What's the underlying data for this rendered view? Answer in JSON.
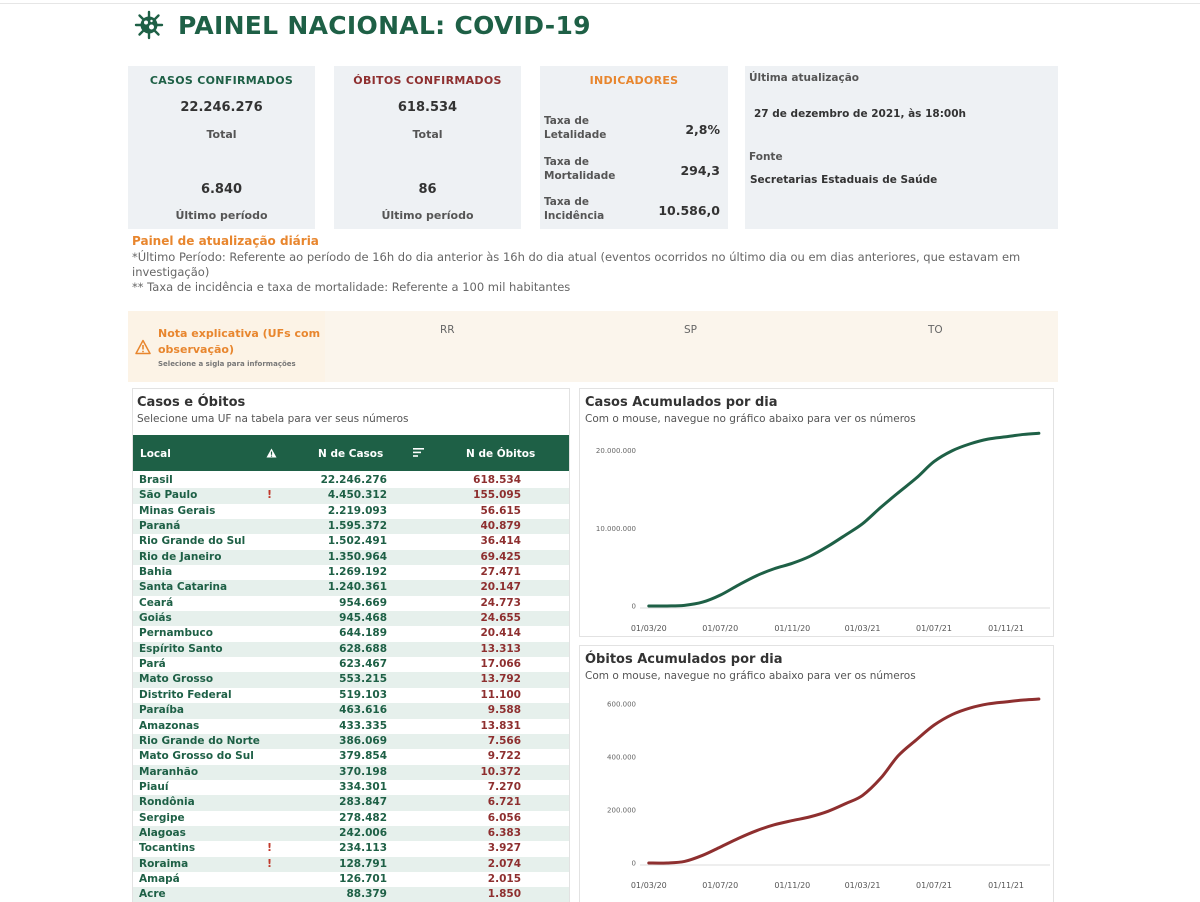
{
  "header": {
    "title": "PAINEL NACIONAL: COVID-19",
    "logo_icon": "virus-icon"
  },
  "cards": {
    "cases": {
      "title": "CASOS CONFIRMADOS",
      "total": "22.246.276",
      "total_label": "Total",
      "period": "6.840",
      "period_label": "Último período",
      "color": "#1e6046"
    },
    "deaths": {
      "title": "ÓBITOS CONFIRMADOS",
      "total": "618.534",
      "total_label": "Total",
      "period": "86",
      "period_label": "Último período",
      "color": "#8e2f2f"
    },
    "indicators": {
      "title": "INDICADORES",
      "color": "#e8862e",
      "items": [
        {
          "label": "Taxa de Letalidade",
          "value": "2,8%"
        },
        {
          "label": "Taxa de Mortalidade",
          "value": "294,3"
        },
        {
          "label": "Taxa de Incidência",
          "value": "10.586,0"
        }
      ]
    },
    "update": {
      "last_label": "Última atualização",
      "last_value": "27 de dezembro de 2021, às 18:00h",
      "source_label": "Fonte",
      "source_value": "Secretarias Estaduais de Saúde"
    }
  },
  "notes": {
    "title": "Painel de atualização diária",
    "line1": "*Último Período: Referente ao período de 16h do dia anterior às 16h do dia atual (eventos ocorridos no último dia ou em dias anteriores, que estavam em",
    "line2": "investigação)",
    "line3": "** Taxa de incidência e taxa de mortalidade: Referente a 100 mil habitantes"
  },
  "explain": {
    "title_line1": "Nota explicativa (UFs com",
    "title_line2": "observação)",
    "subtitle": "Selecione a sigla para informações",
    "ufs": [
      "RR",
      "SP",
      "TO"
    ]
  },
  "table": {
    "title": "Casos e Óbitos",
    "subtitle": "Selecione uma UF na tabela para ver seus números",
    "headers": {
      "local": "Local",
      "cases": "N de Casos",
      "deaths": "N de Óbitos"
    },
    "rows": [
      {
        "local": "Brasil",
        "flag": "",
        "cases": "22.246.276",
        "deaths": "618.534"
      },
      {
        "local": "São Paulo",
        "flag": "!",
        "cases": "4.450.312",
        "deaths": "155.095"
      },
      {
        "local": "Minas Gerais",
        "flag": "",
        "cases": "2.219.093",
        "deaths": "56.615"
      },
      {
        "local": "Paraná",
        "flag": "",
        "cases": "1.595.372",
        "deaths": "40.879"
      },
      {
        "local": "Rio Grande do Sul",
        "flag": "",
        "cases": "1.502.491",
        "deaths": "36.414"
      },
      {
        "local": "Rio de Janeiro",
        "flag": "",
        "cases": "1.350.964",
        "deaths": "69.425"
      },
      {
        "local": "Bahia",
        "flag": "",
        "cases": "1.269.192",
        "deaths": "27.471"
      },
      {
        "local": "Santa Catarina",
        "flag": "",
        "cases": "1.240.361",
        "deaths": "20.147"
      },
      {
        "local": "Ceará",
        "flag": "",
        "cases": "954.669",
        "deaths": "24.773"
      },
      {
        "local": "Goiás",
        "flag": "",
        "cases": "945.468",
        "deaths": "24.655"
      },
      {
        "local": "Pernambuco",
        "flag": "",
        "cases": "644.189",
        "deaths": "20.414"
      },
      {
        "local": "Espírito Santo",
        "flag": "",
        "cases": "628.688",
        "deaths": "13.313"
      },
      {
        "local": "Pará",
        "flag": "",
        "cases": "623.467",
        "deaths": "17.066"
      },
      {
        "local": "Mato Grosso",
        "flag": "",
        "cases": "553.215",
        "deaths": "13.792"
      },
      {
        "local": "Distrito Federal",
        "flag": "",
        "cases": "519.103",
        "deaths": "11.100"
      },
      {
        "local": "Paraíba",
        "flag": "",
        "cases": "463.616",
        "deaths": "9.588"
      },
      {
        "local": "Amazonas",
        "flag": "",
        "cases": "433.335",
        "deaths": "13.831"
      },
      {
        "local": "Rio Grande do Norte",
        "flag": "",
        "cases": "386.069",
        "deaths": "7.566"
      },
      {
        "local": "Mato Grosso do Sul",
        "flag": "",
        "cases": "379.854",
        "deaths": "9.722"
      },
      {
        "local": "Maranhão",
        "flag": "",
        "cases": "370.198",
        "deaths": "10.372"
      },
      {
        "local": "Piauí",
        "flag": "",
        "cases": "334.301",
        "deaths": "7.270"
      },
      {
        "local": "Rondônia",
        "flag": "",
        "cases": "283.847",
        "deaths": "6.721"
      },
      {
        "local": "Sergipe",
        "flag": "",
        "cases": "278.482",
        "deaths": "6.056"
      },
      {
        "local": "Alagoas",
        "flag": "",
        "cases": "242.006",
        "deaths": "6.383"
      },
      {
        "local": "Tocantins",
        "flag": "!",
        "cases": "234.113",
        "deaths": "3.927"
      },
      {
        "local": "Roraima",
        "flag": "!",
        "cases": "128.791",
        "deaths": "2.074"
      },
      {
        "local": "Amapá",
        "flag": "",
        "cases": "126.701",
        "deaths": "2.015"
      },
      {
        "local": "Acre",
        "flag": "",
        "cases": "88.379",
        "deaths": "1.850"
      }
    ]
  },
  "chart_data": [
    {
      "type": "line",
      "title": "Casos Acumulados por dia",
      "subtitle": "Com o mouse, navegue no gráfico abaixo para ver os números",
      "color": "#1e6046",
      "xlabels": [
        "01/03/20",
        "01/07/20",
        "01/11/20",
        "01/03/21",
        "01/07/21",
        "01/11/21"
      ],
      "yticks": [
        0,
        10000000,
        20000000
      ],
      "ytick_labels": [
        "0",
        "10.000.000",
        "20.000.000"
      ],
      "ylim": [
        0,
        22800000
      ],
      "x": [
        "2020-03-01",
        "2020-04-01",
        "2020-05-01",
        "2020-06-01",
        "2020-07-01",
        "2020-08-01",
        "2020-09-01",
        "2020-10-01",
        "2020-11-01",
        "2020-12-01",
        "2021-01-01",
        "2021-02-01",
        "2021-03-01",
        "2021-04-01",
        "2021-05-01",
        "2021-06-01",
        "2021-07-01",
        "2021-08-01",
        "2021-09-01",
        "2021-10-01",
        "2021-11-01",
        "2021-12-01",
        "2021-12-27"
      ],
      "y": [
        0,
        5700,
        85000,
        500000,
        1400000,
        2700000,
        3900000,
        4800000,
        5500000,
        6400000,
        7700000,
        9200000,
        10600000,
        12700000,
        14600000,
        16500000,
        18600000,
        20000000,
        20900000,
        21500000,
        21800000,
        22100000,
        22246276
      ]
    },
    {
      "type": "line",
      "title": "Óbitos Acumulados por dia",
      "subtitle": "Com o mouse, navegue no gráfico abaixo para ver os números",
      "color": "#8e2f2f",
      "xlabels": [
        "01/03/20",
        "01/07/20",
        "01/11/20",
        "01/03/21",
        "01/07/21",
        "01/11/21"
      ],
      "yticks": [
        0,
        200000,
        400000,
        600000
      ],
      "ytick_labels": [
        "0",
        "200.000",
        "400.000",
        "600.000"
      ],
      "ylim": [
        0,
        630000
      ],
      "x": [
        "2020-03-01",
        "2020-04-01",
        "2020-05-01",
        "2020-06-01",
        "2020-07-01",
        "2020-08-01",
        "2020-09-01",
        "2020-10-01",
        "2020-11-01",
        "2020-12-01",
        "2021-01-01",
        "2021-02-01",
        "2021-03-01",
        "2021-04-01",
        "2021-05-01",
        "2021-06-01",
        "2021-07-01",
        "2021-08-01",
        "2021-09-01",
        "2021-10-01",
        "2021-11-01",
        "2021-12-01",
        "2021-12-27"
      ],
      "y": [
        0,
        200,
        5900,
        29000,
        60000,
        93000,
        122000,
        144000,
        160000,
        174000,
        195000,
        225000,
        255000,
        320000,
        405000,
        465000,
        520000,
        560000,
        585000,
        600000,
        608000,
        615000,
        618534
      ]
    }
  ]
}
